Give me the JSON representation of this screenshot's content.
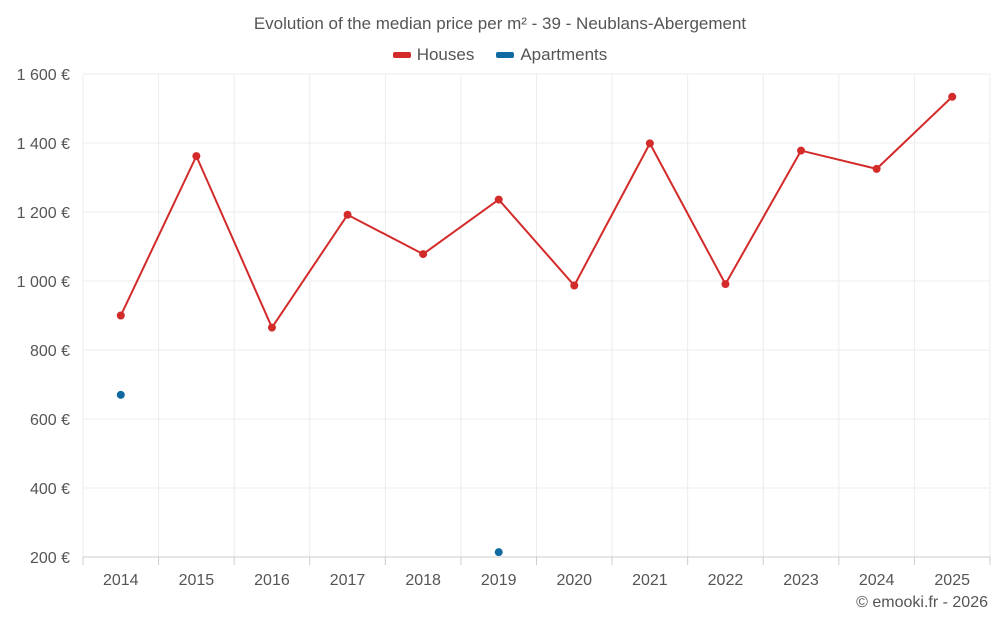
{
  "colors": {
    "houses": "#d32a2a",
    "apartments": "#0f6aa1",
    "grid": "#ececec",
    "text": "#555555"
  },
  "credit": "© emooki.fr - 2026",
  "chart_data": {
    "type": "line",
    "title": "Evolution of the median price per m² - 39 - Neublans-Abergement",
    "xlabel": "",
    "ylabel": "",
    "categories": [
      "2014",
      "2015",
      "2016",
      "2017",
      "2018",
      "2019",
      "2020",
      "2021",
      "2022",
      "2023",
      "2024",
      "2025"
    ],
    "ylim": [
      200,
      1600
    ],
    "yticks": [
      200,
      400,
      600,
      800,
      1000,
      1200,
      1400,
      1600
    ],
    "ytick_labels": [
      "200 €",
      "400 €",
      "600 €",
      "800 €",
      "1 000 €",
      "1 200 €",
      "1 400 €",
      "1 600 €"
    ],
    "grid": true,
    "legend_position": "top-center",
    "series": [
      {
        "name": "Houses",
        "values": [
          900,
          1362,
          865,
          1192,
          1078,
          1236,
          987,
          1399,
          991,
          1378,
          1325,
          1534
        ]
      },
      {
        "name": "Apartments",
        "values": [
          670,
          null,
          null,
          null,
          null,
          214,
          null,
          null,
          null,
          null,
          null,
          null
        ]
      }
    ]
  }
}
